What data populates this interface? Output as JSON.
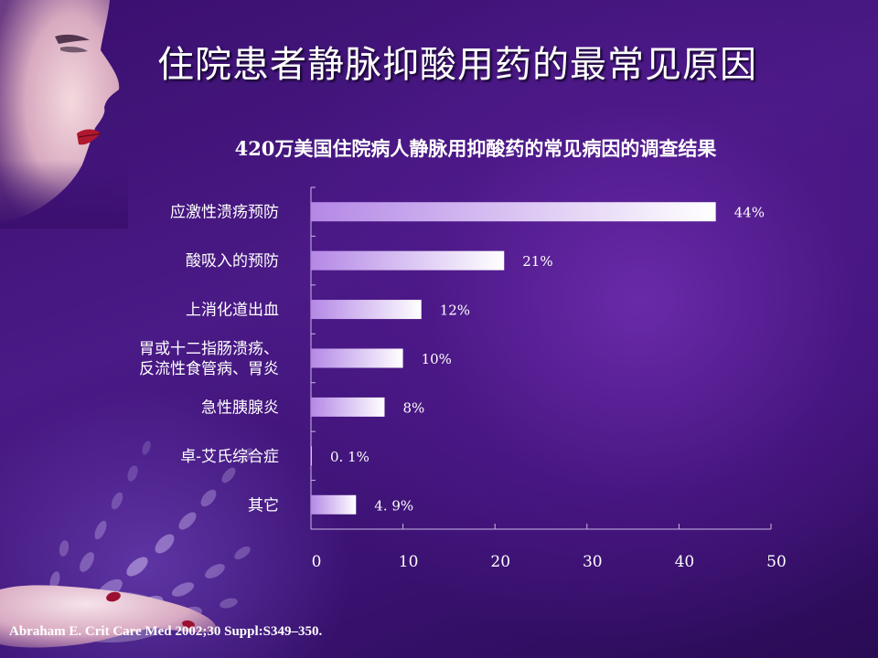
{
  "slide": {
    "title": "住院患者静脉抑酸用药的最常见原因",
    "citation": "Abraham E. Crit Care Med 2002;30 Suppl:S349–350."
  },
  "colors": {
    "background": "#3e1276",
    "bar_start": "#b488e6",
    "bar_end": "#ffffff",
    "text": "#ffffff"
  },
  "chart_data": {
    "type": "bar",
    "orientation": "horizontal",
    "title": "420万美国住院病人静脉用抑酸药的常见病因的调查结果",
    "categories": [
      [
        "应激性溃疡预防"
      ],
      [
        "酸吸入的预防"
      ],
      [
        "上消化道出血"
      ],
      [
        "胃或十二指肠溃疡、",
        "反流性食管病、胃炎"
      ],
      [
        "急性胰腺炎"
      ],
      [
        "卓-艾氏综合症"
      ],
      [
        "其它"
      ]
    ],
    "values": [
      44,
      21,
      12,
      10,
      8,
      0.1,
      4.9
    ],
    "value_labels": [
      "44%",
      "21%",
      "12%",
      "10%",
      "8%",
      "0. 1%",
      "4. 9%"
    ],
    "xlim": [
      0,
      50
    ],
    "x_ticks": [
      0,
      10,
      20,
      30,
      40,
      50
    ],
    "grid": false
  }
}
